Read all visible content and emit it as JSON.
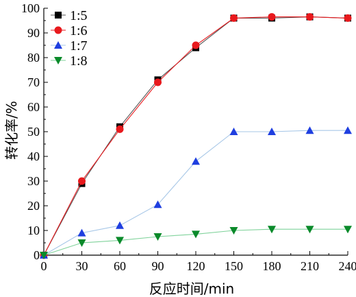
{
  "chart_data": {
    "type": "line",
    "xlabel": "反应时间/min",
    "ylabel": "转化率/%",
    "xlim": [
      0,
      240
    ],
    "ylim": [
      0,
      100
    ],
    "x_ticks": [
      0,
      30,
      60,
      90,
      120,
      150,
      180,
      210,
      240
    ],
    "y_ticks": [
      0,
      10,
      20,
      30,
      40,
      50,
      60,
      70,
      80,
      90,
      100
    ],
    "grid": false,
    "legend_position": "top-left",
    "x": [
      0,
      30,
      60,
      90,
      120,
      150,
      180,
      210,
      240
    ],
    "series": [
      {
        "name": "1:5",
        "color": "#000000",
        "marker": "square",
        "values": [
          0,
          29,
          52,
          71,
          84,
          96,
          96,
          96.5,
          96
        ]
      },
      {
        "name": "1:6",
        "color": "#e8191d",
        "marker": "circle",
        "values": [
          0,
          30,
          51,
          70,
          85,
          96,
          96.5,
          96.5,
          96
        ]
      },
      {
        "name": "1:7",
        "color": "#1f3fe0",
        "marker": "triangle-up",
        "values": [
          0,
          9,
          12,
          20.5,
          38,
          50,
          50,
          50.5,
          50.5
        ]
      },
      {
        "name": "1:8",
        "color": "#0a8a2a",
        "marker": "triangle-down",
        "values": [
          0,
          5,
          6,
          7.5,
          8.5,
          10,
          10.5,
          10.5,
          10.5
        ]
      }
    ],
    "line_color": "#a7c7e7"
  }
}
